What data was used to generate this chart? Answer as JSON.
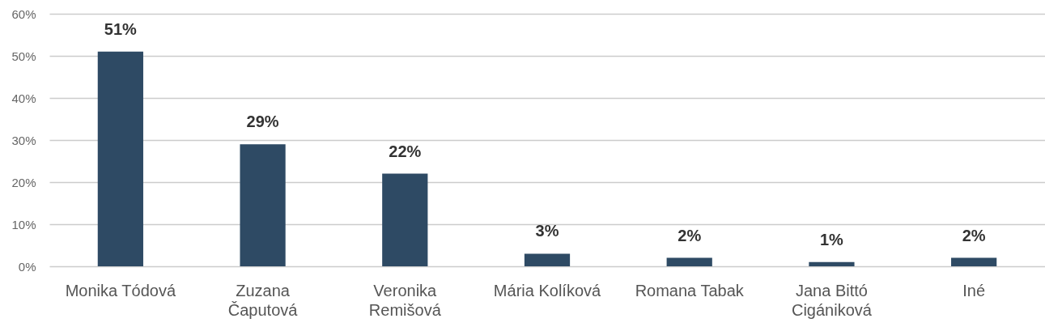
{
  "chart_data": {
    "type": "bar",
    "categories": [
      "Monika Tódová",
      "Zuzana Čaputová",
      "Veronika Remišová",
      "Mária Kolíková",
      "Romana Tabak",
      "Jana Bittó Cigániková",
      "Iné"
    ],
    "values": [
      51,
      29,
      22,
      3,
      2,
      1,
      2
    ],
    "value_labels": [
      "51%",
      "29%",
      "22%",
      "3%",
      "2%",
      "1%",
      "2%"
    ],
    "color": "#2e4a64",
    "ylim": [
      0,
      60
    ],
    "yticks": [
      {
        "value": 0,
        "label": "0%"
      },
      {
        "value": 10,
        "label": "10%"
      },
      {
        "value": 20,
        "label": "20%"
      },
      {
        "value": 30,
        "label": "30%"
      },
      {
        "value": 40,
        "label": "40%"
      },
      {
        "value": 50,
        "label": "50%"
      },
      {
        "value": 60,
        "label": "60%"
      }
    ],
    "grid": "y"
  }
}
